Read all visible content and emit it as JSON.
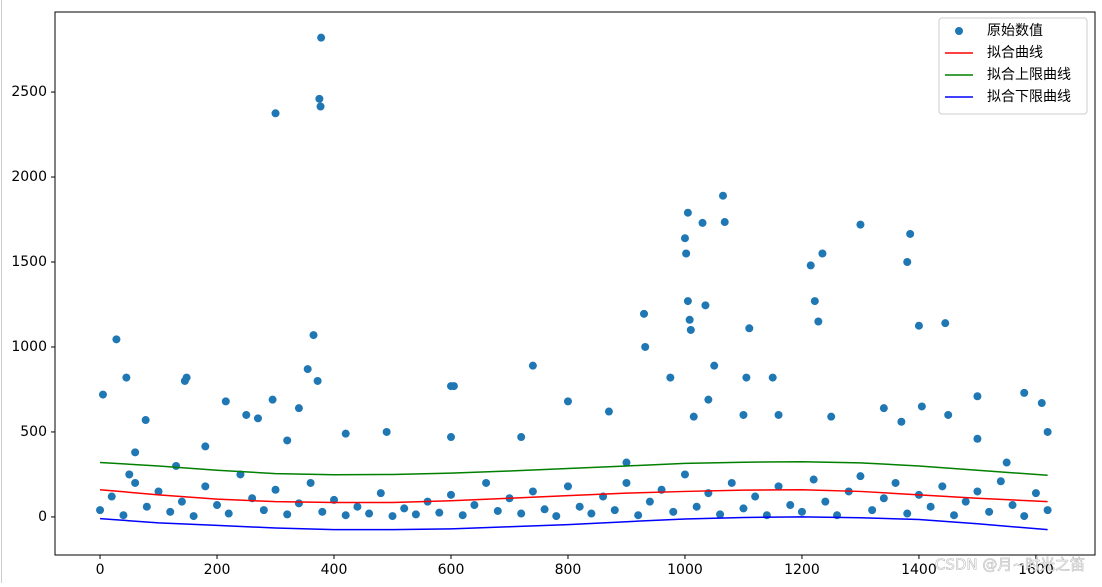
{
  "chart_data": {
    "type": "scatter",
    "xlim": [
      -77,
      1701
    ],
    "ylim": [
      -224,
      2971
    ],
    "xticks": [
      0,
      200,
      400,
      600,
      800,
      1000,
      1200,
      1400,
      1600
    ],
    "yticks": [
      0,
      500,
      1000,
      1500,
      2000,
      2500
    ],
    "legend": "upper right",
    "watermark": "CSDN @月~时光之笛",
    "series": [
      {
        "name": "原始数值",
        "type": "scatter",
        "color": "#1f77b4",
        "x": [
          5,
          28,
          45,
          78,
          145,
          148,
          215,
          300,
          365,
          378,
          375,
          377,
          372,
          355,
          340,
          295,
          420,
          490,
          600,
          605,
          740,
          800,
          870,
          930,
          932,
          1000,
          1002,
          1005,
          1005,
          1008,
          1010,
          1030,
          1035,
          1065,
          1068,
          1110,
          1105,
          1150,
          1215,
          1222,
          1228,
          1235,
          1300,
          1380,
          1385,
          1400,
          1445,
          1450,
          1405,
          1370,
          1250,
          1340,
          1500,
          1580,
          1610,
          1620,
          975,
          1050,
          1040,
          1015,
          720,
          600,
          250,
          270,
          320,
          180,
          60,
          130,
          50,
          900,
          1160,
          1100,
          1500,
          1550,
          0,
          20,
          40,
          60,
          80,
          100,
          120,
          140,
          160,
          180,
          200,
          220,
          240,
          260,
          280,
          300,
          320,
          340,
          360,
          380,
          400,
          420,
          440,
          460,
          480,
          500,
          520,
          540,
          560,
          580,
          600,
          620,
          640,
          660,
          680,
          700,
          720,
          740,
          760,
          780,
          800,
          820,
          840,
          860,
          880,
          900,
          920,
          940,
          960,
          980,
          1000,
          1020,
          1040,
          1060,
          1080,
          1100,
          1120,
          1140,
          1160,
          1180,
          1200,
          1220,
          1240,
          1260,
          1280,
          1300,
          1320,
          1340,
          1360,
          1380,
          1400,
          1420,
          1440,
          1460,
          1480,
          1500,
          1520,
          1540,
          1560,
          1580,
          1600,
          1620
        ],
        "values": [
          720,
          1045,
          820,
          570,
          800,
          820,
          680,
          2375,
          1070,
          2820,
          2460,
          2415,
          800,
          870,
          640,
          690,
          490,
          500,
          770,
          770,
          890,
          680,
          620,
          1195,
          1000,
          1640,
          1550,
          1790,
          1270,
          1160,
          1100,
          1730,
          1245,
          1890,
          1735,
          1110,
          820,
          820,
          1480,
          1270,
          1150,
          1550,
          1720,
          1500,
          1665,
          1125,
          1140,
          600,
          650,
          560,
          590,
          640,
          710,
          730,
          670,
          500,
          820,
          890,
          690,
          590,
          470,
          470,
          600,
          580,
          450,
          415,
          380,
          300,
          250,
          320,
          600,
          600,
          460,
          320,
          40,
          120,
          10,
          200,
          60,
          150,
          30,
          90,
          5,
          180,
          70,
          20,
          250,
          110,
          40,
          160,
          15,
          80,
          200,
          30,
          100,
          10,
          60,
          20,
          140,
          5,
          50,
          15,
          90,
          25,
          130,
          10,
          70,
          200,
          35,
          110,
          20,
          150,
          45,
          5,
          180,
          60,
          20,
          120,
          40,
          200,
          10,
          90,
          160,
          30,
          250,
          60,
          140,
          15,
          200,
          50,
          120,
          10,
          180,
          70,
          30,
          220,
          90,
          10,
          150,
          240,
          40,
          110,
          200,
          20,
          130,
          60,
          180,
          10,
          90,
          150,
          30,
          210,
          70,
          5,
          140,
          40
        ]
      },
      {
        "name": "拟合曲线",
        "type": "line",
        "color": "#ff0000",
        "x": [
          0,
          100,
          200,
          300,
          400,
          500,
          600,
          700,
          800,
          900,
          1000,
          1100,
          1200,
          1300,
          1400,
          1500,
          1620
        ],
        "values": [
          160,
          130,
          105,
          90,
          85,
          85,
          95,
          110,
          125,
          140,
          150,
          158,
          160,
          150,
          130,
          110,
          90
        ]
      },
      {
        "name": "拟合上限曲线",
        "type": "line",
        "color": "#008000",
        "x": [
          0,
          100,
          200,
          300,
          400,
          500,
          600,
          700,
          800,
          900,
          1000,
          1100,
          1200,
          1300,
          1400,
          1500,
          1620
        ],
        "values": [
          320,
          300,
          275,
          255,
          248,
          250,
          258,
          270,
          285,
          300,
          315,
          322,
          325,
          318,
          300,
          275,
          245
        ]
      },
      {
        "name": "拟合下限曲线",
        "type": "line",
        "color": "#0000ff",
        "x": [
          0,
          100,
          200,
          300,
          400,
          500,
          600,
          700,
          800,
          900,
          1000,
          1100,
          1200,
          1300,
          1400,
          1500,
          1620
        ],
        "values": [
          -10,
          -35,
          -50,
          -65,
          -75,
          -75,
          -70,
          -58,
          -45,
          -28,
          -12,
          -3,
          0,
          -5,
          -15,
          -40,
          -75
        ]
      }
    ]
  }
}
